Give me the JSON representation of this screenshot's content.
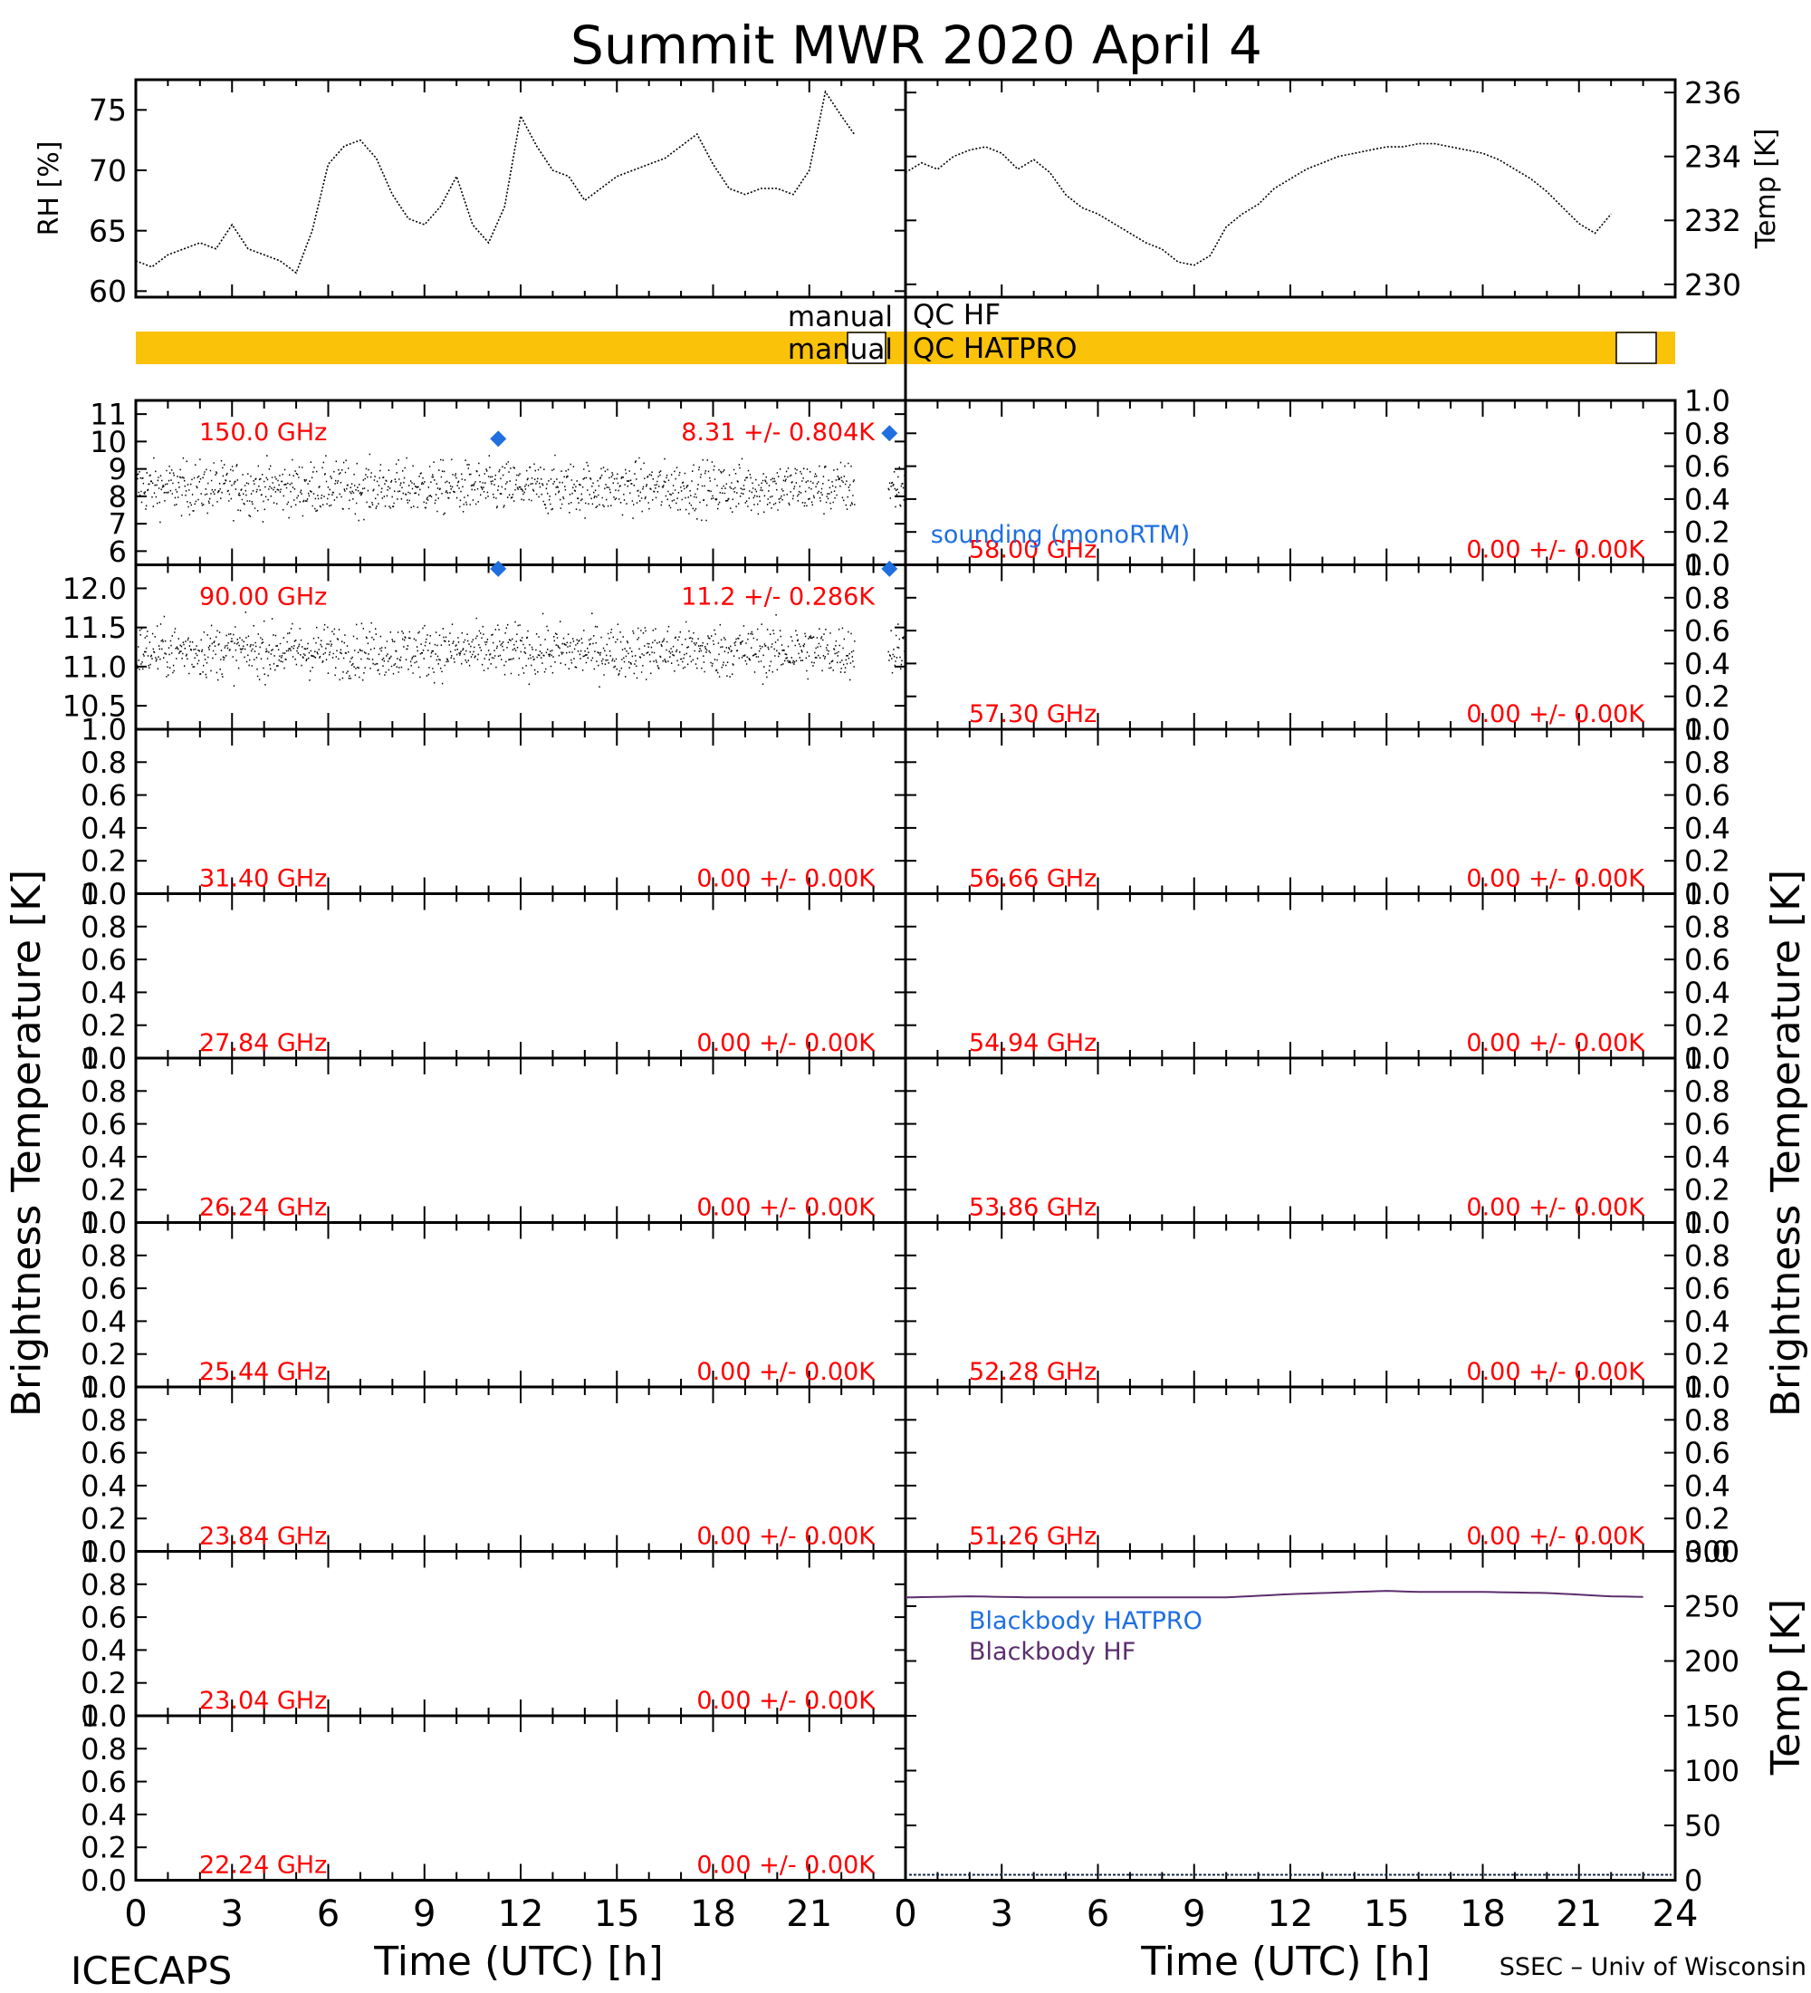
{
  "title": "Summit MWR 2020 April  4",
  "colors": {
    "axis": "#000000",
    "data": "#000000",
    "annotation": "#ff0000",
    "sounding": "#1f6fe0",
    "qc_bar": "#fbc20a",
    "blackbody_hatpro": "#1f6fe0",
    "blackbody_hf": "#5c2e6e"
  },
  "qc": {
    "hf_label_left": "manual",
    "hf_label_right": "QC HF",
    "hatpro_label_left": "manual",
    "hatpro_label_right": "QC HATPRO"
  },
  "labels": {
    "y_left": "Brightness Temperature [K]",
    "y_right": "Brightness Temperature [K]",
    "x_left": "Time (UTC) [h]",
    "x_right": "Time (UTC) [h]",
    "footer_left": "ICECAPS",
    "footer_right": "SSEC – Univ of Wisconsin",
    "sounding_legend": "sounding (monoRTM)",
    "bb_hatpro_legend": "Blackbody HATPRO",
    "bb_hf_legend": "Blackbody HF"
  },
  "chart_data": [
    {
      "type": "scatter",
      "id": "rh",
      "ylabel": "RH [%]",
      "ylim": [
        59.5,
        77.5
      ],
      "yticks": [
        60,
        65,
        70,
        75
      ],
      "xlim": [
        0,
        24
      ],
      "x": [
        0,
        0.5,
        1,
        1.5,
        2,
        2.5,
        3,
        3.5,
        4,
        4.5,
        5,
        5.5,
        6,
        6.5,
        7,
        7.5,
        8,
        8.5,
        9,
        9.5,
        10,
        10.5,
        11,
        11.5,
        12,
        12.5,
        13,
        13.5,
        14,
        14.5,
        15,
        15.5,
        16,
        16.5,
        17,
        17.5,
        18,
        18.5,
        19,
        19.5,
        20,
        20.5,
        21,
        21.5,
        22,
        22.4
      ],
      "y": [
        62.5,
        62,
        63,
        63.5,
        64,
        63.5,
        65.5,
        63.5,
        63,
        62.5,
        61.5,
        65,
        70.5,
        72,
        72.5,
        71,
        68,
        66,
        65.5,
        67,
        69.5,
        65.5,
        64,
        67,
        74.5,
        72,
        70,
        69.5,
        67.5,
        68.5,
        69.5,
        70,
        70.5,
        71,
        72,
        73,
        70.5,
        68.5,
        68,
        68.5,
        68.5,
        68,
        70,
        76.5,
        74.5,
        73
      ]
    },
    {
      "type": "scatter",
      "id": "temp",
      "ylabel": "Temp [K]",
      "ylim": [
        229.6,
        236.4
      ],
      "yticks": [
        230,
        232,
        234,
        236
      ],
      "xlim": [
        0,
        24
      ],
      "x": [
        0,
        0.5,
        1,
        1.5,
        2,
        2.5,
        3,
        3.5,
        4,
        4.5,
        5,
        5.5,
        6,
        6.5,
        7,
        7.5,
        8,
        8.5,
        9,
        9.5,
        10,
        10.5,
        11,
        11.5,
        12,
        12.5,
        13,
        13.5,
        14,
        14.5,
        15,
        15.5,
        16,
        16.5,
        17,
        17.5,
        18,
        18.5,
        19,
        19.5,
        20,
        20.5,
        21,
        21.5,
        22
      ],
      "y": [
        233.5,
        233.8,
        233.6,
        234,
        234.2,
        234.3,
        234.1,
        233.6,
        233.9,
        233.5,
        232.8,
        232.4,
        232.2,
        231.9,
        231.6,
        231.3,
        231.1,
        230.7,
        230.6,
        230.9,
        231.8,
        232.2,
        232.5,
        233,
        233.3,
        233.6,
        233.8,
        234,
        234.1,
        234.2,
        234.3,
        234.3,
        234.4,
        234.4,
        234.3,
        234.2,
        234.1,
        233.9,
        233.6,
        233.3,
        232.9,
        232.4,
        231.9,
        231.6,
        232.2
      ]
    },
    {
      "type": "table",
      "id": "channels",
      "left": [
        {
          "freq": "150.0 GHz",
          "stats": "8.31 +/- 0.804K",
          "ylim": [
            5.5,
            11.5
          ],
          "yticks": [
            6,
            7,
            8,
            9,
            10,
            11
          ],
          "mean": 8.31,
          "std": 0.804,
          "sounding": [
            {
              "x": 11.3,
              "y": 10.1
            },
            {
              "x": 23.5,
              "y": 10.3
            }
          ]
        },
        {
          "freq": "90.00 GHz",
          "stats": "11.2 +/- 0.286K",
          "ylim": [
            10.2,
            12.3
          ],
          "yticks": [
            "10.5",
            "11.0",
            "11.5",
            "12.0"
          ],
          "mean": 11.2,
          "std": 0.286,
          "sounding": [
            {
              "x": 11.3,
              "y": 12.25
            },
            {
              "x": 23.5,
              "y": 12.25
            }
          ]
        },
        {
          "freq": "31.40 GHz",
          "stats": "0.00 +/- 0.00K",
          "ylim": [
            0,
            1
          ],
          "yticks": [
            "0.0",
            "0.2",
            "0.4",
            "0.6",
            "0.8",
            "1.0"
          ]
        },
        {
          "freq": "27.84 GHz",
          "stats": "0.00 +/- 0.00K",
          "ylim": [
            0,
            1
          ],
          "yticks": [
            "0.0",
            "0.2",
            "0.4",
            "0.6",
            "0.8",
            "1.0"
          ]
        },
        {
          "freq": "26.24 GHz",
          "stats": "0.00 +/- 0.00K",
          "ylim": [
            0,
            1
          ],
          "yticks": [
            "0.0",
            "0.2",
            "0.4",
            "0.6",
            "0.8",
            "1.0"
          ]
        },
        {
          "freq": "25.44 GHz",
          "stats": "0.00 +/- 0.00K",
          "ylim": [
            0,
            1
          ],
          "yticks": [
            "0.0",
            "0.2",
            "0.4",
            "0.6",
            "0.8",
            "1.0"
          ]
        },
        {
          "freq": "23.84 GHz",
          "stats": "0.00 +/- 0.00K",
          "ylim": [
            0,
            1
          ],
          "yticks": [
            "0.0",
            "0.2",
            "0.4",
            "0.6",
            "0.8",
            "1.0"
          ]
        },
        {
          "freq": "23.04 GHz",
          "stats": "0.00 +/- 0.00K",
          "ylim": [
            0,
            1
          ],
          "yticks": [
            "0.0",
            "0.2",
            "0.4",
            "0.6",
            "0.8",
            "1.0"
          ]
        },
        {
          "freq": "22.24 GHz",
          "stats": "0.00 +/- 0.00K",
          "ylim": [
            0,
            1
          ],
          "yticks": [
            "0.0",
            "0.2",
            "0.4",
            "0.6",
            "0.8",
            "1.0"
          ]
        }
      ],
      "right": [
        {
          "freq": "58.00 GHz",
          "stats": "0.00 +/- 0.00K",
          "ylim": [
            0,
            1
          ],
          "yticks": [
            "0.0",
            "0.2",
            "0.4",
            "0.6",
            "0.8",
            "1.0"
          ]
        },
        {
          "freq": "57.30 GHz",
          "stats": "0.00 +/- 0.00K",
          "ylim": [
            0,
            1
          ],
          "yticks": [
            "0.0",
            "0.2",
            "0.4",
            "0.6",
            "0.8",
            "1.0"
          ]
        },
        {
          "freq": "56.66 GHz",
          "stats": "0.00 +/- 0.00K",
          "ylim": [
            0,
            1
          ],
          "yticks": [
            "0.0",
            "0.2",
            "0.4",
            "0.6",
            "0.8",
            "1.0"
          ]
        },
        {
          "freq": "54.94 GHz",
          "stats": "0.00 +/- 0.00K",
          "ylim": [
            0,
            1
          ],
          "yticks": [
            "0.0",
            "0.2",
            "0.4",
            "0.6",
            "0.8",
            "1.0"
          ]
        },
        {
          "freq": "53.86 GHz",
          "stats": "0.00 +/- 0.00K",
          "ylim": [
            0,
            1
          ],
          "yticks": [
            "0.0",
            "0.2",
            "0.4",
            "0.6",
            "0.8",
            "1.0"
          ]
        },
        {
          "freq": "52.28 GHz",
          "stats": "0.00 +/- 0.00K",
          "ylim": [
            0,
            1
          ],
          "yticks": [
            "0.0",
            "0.2",
            "0.4",
            "0.6",
            "0.8",
            "1.0"
          ]
        },
        {
          "freq": "51.26 GHz",
          "stats": "0.00 +/- 0.00K",
          "ylim": [
            0,
            1
          ],
          "yticks": [
            "0.0",
            "0.2",
            "0.4",
            "0.6",
            "0.8",
            "1.0"
          ]
        }
      ]
    },
    {
      "type": "line",
      "id": "blackbody",
      "ylabel": "Temp [K]",
      "ylim": [
        0,
        300
      ],
      "yticks": [
        0,
        50,
        100,
        150,
        200,
        250,
        300
      ],
      "xlim": [
        0,
        24
      ],
      "series": [
        {
          "name": "Blackbody HF",
          "x": [
            0,
            2,
            4,
            6,
            8,
            10,
            12,
            14,
            15,
            16,
            18,
            20,
            22,
            24
          ],
          "y": [
            258,
            259,
            258,
            258,
            258,
            258,
            261,
            263,
            264,
            263,
            263,
            262,
            259,
            258
          ]
        }
      ]
    },
    {
      "type": "bar",
      "id": "time-axis",
      "xlim": [
        0,
        24
      ],
      "xticks": [
        0,
        3,
        6,
        9,
        12,
        15,
        18,
        21,
        24
      ]
    }
  ]
}
